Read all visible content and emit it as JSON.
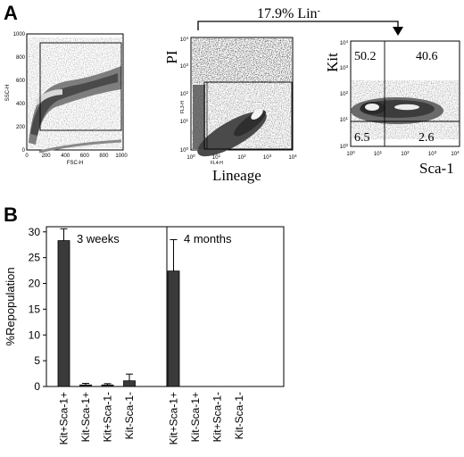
{
  "panel_a": {
    "letter": "A",
    "gate_label": "17.9% Lin",
    "gate_label_sup": "-",
    "plot1": {
      "ylabel": "SSC-H",
      "xlabel": "FSC-H",
      "xticks": [
        "0",
        "200",
        "400",
        "600",
        "800",
        "1000"
      ],
      "yticks": [
        "0",
        "200",
        "400",
        "600",
        "800",
        "1000"
      ]
    },
    "plot2": {
      "ylabel_big": "PI",
      "ylabel_small": "FL3-H",
      "xlabel_big": "Lineage",
      "xlabel_small": "FL4-H",
      "ticks_base": "10",
      "ticks_exp": [
        "0",
        "1",
        "2",
        "3",
        "4"
      ]
    },
    "plot3": {
      "ylabel": "Kit",
      "xlabel": "Sca-1",
      "ticks_base": "10",
      "ticks_exp": [
        "0",
        "1",
        "2",
        "3",
        "4"
      ],
      "quadrants": {
        "top_left": "50.2",
        "top_right": "40.6",
        "bottom_left": "6.5",
        "bottom_right": "2.6"
      }
    }
  },
  "panel_b": {
    "letter": "B",
    "chart_data": {
      "type": "bar",
      "ylabel": "%Repopulation",
      "ylim": [
        0,
        31
      ],
      "yticks": [
        0,
        5,
        10,
        15,
        20,
        25,
        30
      ],
      "groups": [
        {
          "name": "3 weeks",
          "categories": [
            "Kit+Sca-1+",
            "Kit-Sca-1+",
            "Kit+Sca-1-",
            "Kit-Sca-1-"
          ],
          "values": [
            28.3,
            0.3,
            0.3,
            1.1
          ],
          "errors": [
            2.3,
            0.3,
            0.25,
            1.3
          ]
        },
        {
          "name": "4 months",
          "categories": [
            "Kit+Sca-1+",
            "Kit-Sca-1+",
            "Kit+Sca-1-",
            "Kit-Sca-1-"
          ],
          "values": [
            22.4,
            0,
            0,
            0
          ],
          "errors": [
            6.1,
            0,
            0,
            0
          ]
        }
      ],
      "bar_color": "#3a3a3a"
    }
  }
}
